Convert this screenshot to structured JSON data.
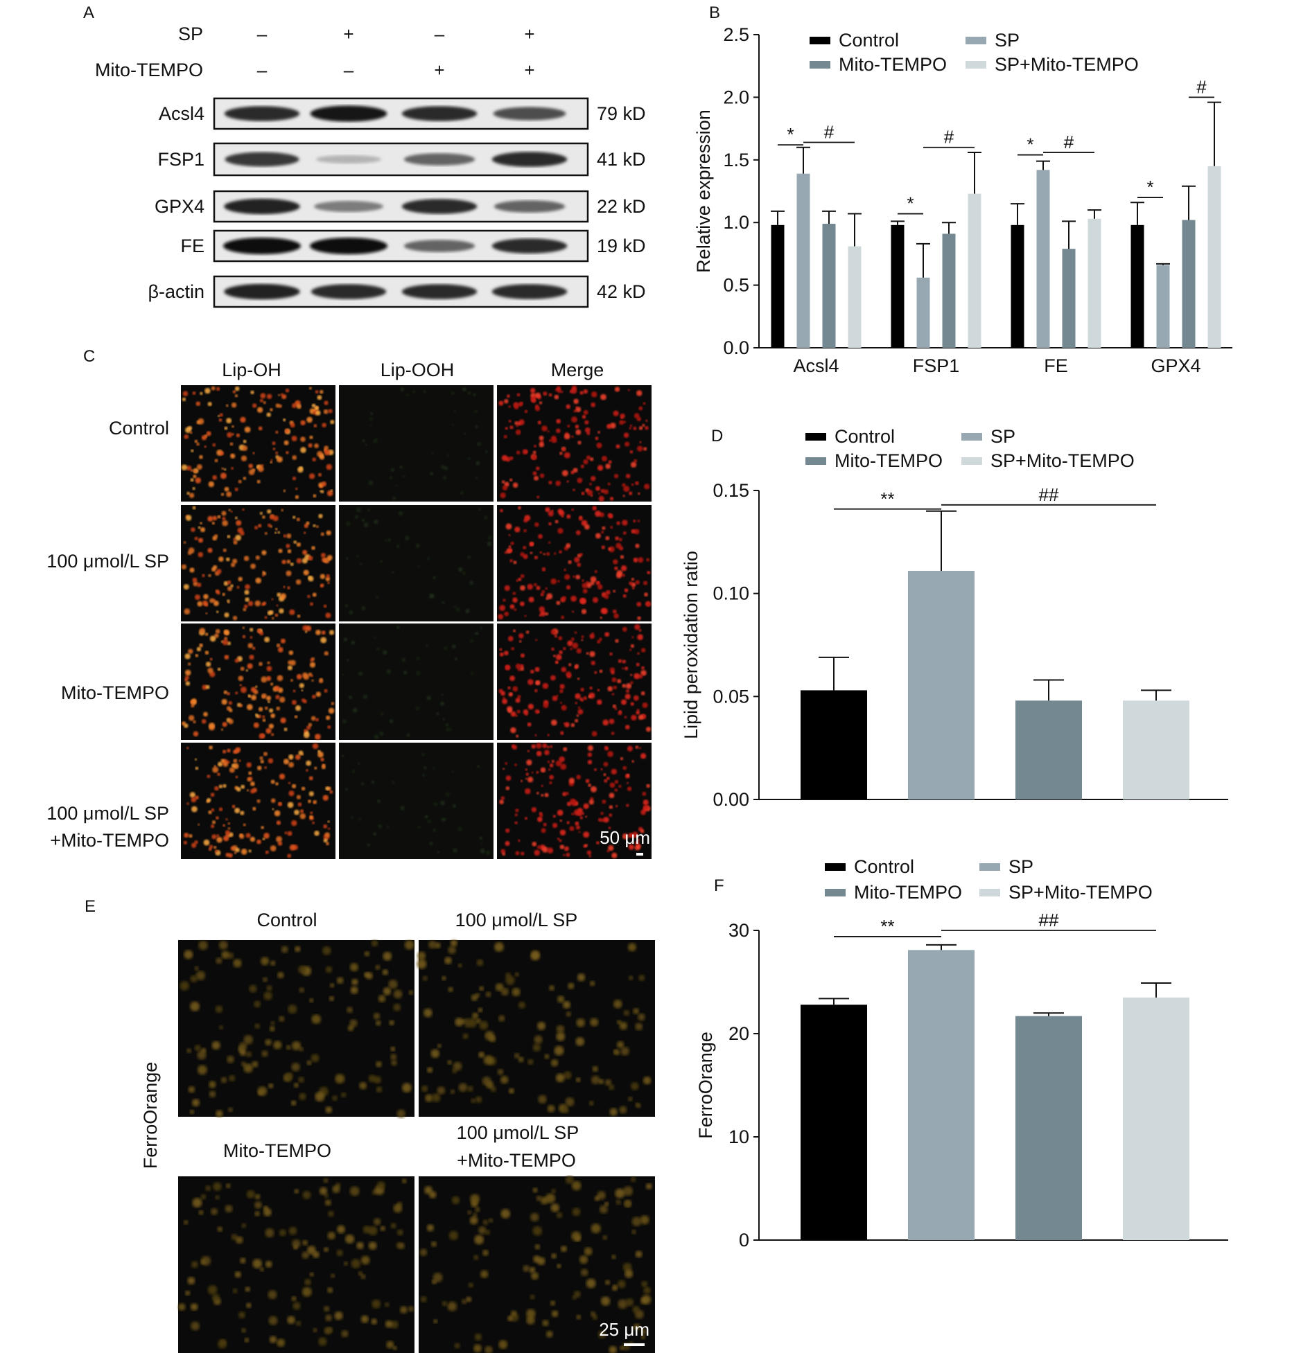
{
  "colors": {
    "control": "#000000",
    "sp": "#97a8b2",
    "mito": "#738890",
    "sp_mito": "#cfd9dc"
  },
  "panel_labels": [
    "A",
    "B",
    "C",
    "D",
    "E",
    "F"
  ],
  "western_blot": {
    "conditions": [
      {
        "label": "SP",
        "values": [
          "–",
          "+",
          "–",
          "+"
        ]
      },
      {
        "label": "Mito-TEMPO",
        "values": [
          "–",
          "–",
          "+",
          "+"
        ]
      }
    ],
    "proteins": [
      {
        "name": "Acsl4",
        "size": "79 kD",
        "band_intensity": [
          0.85,
          0.95,
          0.85,
          0.7
        ]
      },
      {
        "name": "FSP1",
        "size": "41 kD",
        "band_intensity": [
          0.8,
          0.25,
          0.6,
          0.85
        ]
      },
      {
        "name": "GPX4",
        "size": "22 kD",
        "band_intensity": [
          0.9,
          0.5,
          0.85,
          0.6
        ]
      },
      {
        "name": "FE",
        "size": "19 kD",
        "band_intensity": [
          1.0,
          1.0,
          0.6,
          0.85
        ]
      },
      {
        "name": "β-actin",
        "size": "42 kD",
        "band_intensity": [
          0.9,
          0.85,
          0.85,
          0.85
        ]
      }
    ]
  },
  "micrograph_c": {
    "columns": [
      "Lip-OH",
      "Lip-OOH",
      "Merge"
    ],
    "rows": [
      "Control",
      "100 μmol/L SP",
      "Mito-TEMPO",
      "100 μmol/L SP",
      "+Mito-TEMPO"
    ],
    "scale_bar": "50 μm"
  },
  "micrograph_e": {
    "top_labels": [
      "Control",
      "100 μmol/L SP"
    ],
    "bottom_labels": [
      "Mito-TEMPO",
      "100 μmol/L SP",
      "+Mito-TEMPO"
    ],
    "side_label": "FerroOrange",
    "scale_bar": "25 μm"
  },
  "chart_data": [
    {
      "panel": "B",
      "type": "bar",
      "categories": [
        "Acsl4",
        "FSP1",
        "FE",
        "GPX4"
      ],
      "ylabel": "Relative expression",
      "ylim": [
        0,
        2.5
      ],
      "yticks": [
        "0.0",
        "0.5",
        "1.0",
        "1.5",
        "2.0",
        "2.5"
      ],
      "legend": {
        "placement": "top",
        "columns": 2
      },
      "series": [
        {
          "name": "Control",
          "values": [
            0.98,
            0.98,
            0.98,
            0.98
          ],
          "errors": [
            0.11,
            0.03,
            0.17,
            0.18
          ]
        },
        {
          "name": "SP",
          "values": [
            1.39,
            0.56,
            1.42,
            0.66
          ],
          "errors": [
            0.21,
            0.27,
            0.07,
            0.01
          ]
        },
        {
          "name": "Mito-TEMPO",
          "values": [
            0.99,
            0.91,
            0.79,
            1.02
          ],
          "errors": [
            0.1,
            0.09,
            0.22,
            0.27
          ]
        },
        {
          "name": "SP+Mito-TEMPO",
          "values": [
            0.81,
            1.23,
            1.03,
            1.45
          ],
          "errors": [
            0.26,
            0.33,
            0.07,
            0.51
          ]
        }
      ],
      "annotations": [
        {
          "text": "*",
          "category": 0,
          "from": 0,
          "to": 1,
          "y": 1.62
        },
        {
          "text": "#",
          "category": 0,
          "from": 1,
          "to": 3,
          "y": 1.64
        },
        {
          "text": "*",
          "category": 1,
          "from": 0,
          "to": 1,
          "y": 1.07
        },
        {
          "text": "#",
          "category": 1,
          "from": 1,
          "to": 3,
          "y": 1.6
        },
        {
          "text": "*",
          "category": 2,
          "from": 0,
          "to": 1,
          "y": 1.54
        },
        {
          "text": "#",
          "category": 2,
          "from": 1,
          "to": 3,
          "y": 1.56
        },
        {
          "text": "*",
          "category": 3,
          "from": 0,
          "to": 1,
          "y": 1.2
        },
        {
          "text": "#",
          "category": 3,
          "from": 2,
          "to": 3,
          "y": 2.0
        }
      ]
    },
    {
      "panel": "D",
      "type": "bar",
      "categories": [
        "Control",
        "SP",
        "Mito-TEMPO",
        "SP+Mito-TEMPO"
      ],
      "ylabel": "Lipid peroxidation ratio",
      "ylim": [
        0,
        0.15
      ],
      "yticks": [
        "0.00",
        "0.05",
        "0.10",
        "0.15"
      ],
      "legend": {
        "placement": "top",
        "columns": 2
      },
      "values": [
        0.053,
        0.111,
        0.048,
        0.048
      ],
      "errors": [
        0.016,
        0.029,
        0.01,
        0.005
      ],
      "annotations": [
        {
          "text": "**",
          "from": 0,
          "to": 1,
          "y": 0.141
        },
        {
          "text": "##",
          "from": 1,
          "to": 3,
          "y": 0.143
        }
      ]
    },
    {
      "panel": "F",
      "type": "bar",
      "categories": [
        "Control",
        "SP",
        "Mito-TEMPO",
        "SP+Mito-TEMPO"
      ],
      "ylabel": "FerroOrange",
      "ylim": [
        0,
        30
      ],
      "yticks": [
        "0",
        "10",
        "20",
        "30"
      ],
      "legend": {
        "placement": "top",
        "columns": 2
      },
      "values": [
        22.8,
        28.1,
        21.7,
        23.5
      ],
      "errors": [
        0.6,
        0.5,
        0.3,
        1.4
      ],
      "annotations": [
        {
          "text": "**",
          "from": 0,
          "to": 1,
          "y": 29.4
        },
        {
          "text": "##",
          "from": 1,
          "to": 3,
          "y": 30.0
        }
      ]
    }
  ]
}
